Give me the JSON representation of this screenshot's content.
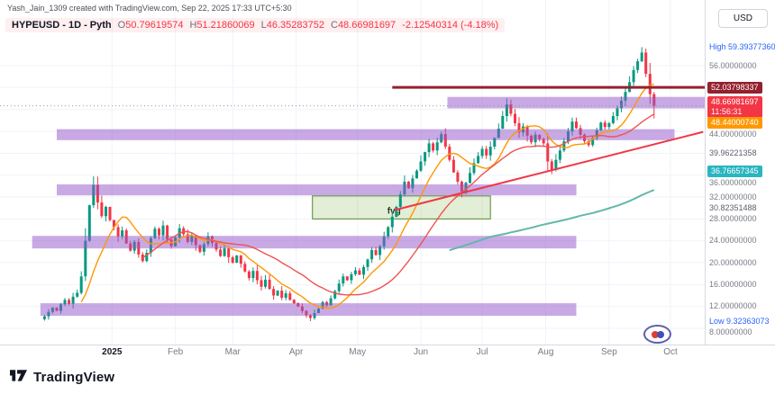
{
  "watermark": "Yash_Jain_1309 created with TradingView.com, Sep 22, 2025 17:33 UTC+5:30",
  "currency_button": "USD",
  "footer": {
    "brand": "TradingView"
  },
  "legend": {
    "title": "HYPEUSD - 1D - Pyth",
    "ohlc": [
      {
        "k": "O",
        "v": "50.79619574"
      },
      {
        "k": "H",
        "v": "51.21860069"
      },
      {
        "k": "L",
        "v": "46.35283752"
      },
      {
        "k": "C",
        "v": "48.66981697"
      }
    ],
    "change": "-2.12540314 (-4.18%)"
  },
  "axis": {
    "items": [
      {
        "type": "hl",
        "label": "High",
        "value": "59.39377360"
      },
      {
        "type": "tick",
        "value": "56.00000000"
      },
      {
        "type": "badge",
        "value": "52.03798337",
        "color": "maroon"
      },
      {
        "type": "badge",
        "value": "48.66981697",
        "color": "red",
        "countdown": "11:56:31"
      },
      {
        "type": "badge",
        "value": "48.44000740",
        "color": "orange"
      },
      {
        "type": "tick",
        "value": "44.00000000"
      },
      {
        "type": "lbl",
        "value": "39.96221358"
      },
      {
        "type": "badge",
        "value": "36.76657345",
        "color": "teal"
      },
      {
        "type": "tick",
        "value": "36.00000000"
      },
      {
        "type": "tick",
        "value": "32.00000000"
      },
      {
        "type": "lbl",
        "value": "30.82351488"
      },
      {
        "type": "tick",
        "value": "28.00000000"
      },
      {
        "type": "tick",
        "value": "24.00000000"
      },
      {
        "type": "tick",
        "value": "20.00000000"
      },
      {
        "type": "tick",
        "value": "16.00000000"
      },
      {
        "type": "tick",
        "value": "12.00000000"
      },
      {
        "type": "hl",
        "label": "Low",
        "value": "9.32363073"
      },
      {
        "type": "tick",
        "value": "8.00000000"
      }
    ]
  },
  "x_axis": [
    {
      "label": "2025",
      "day": 38,
      "major": true
    },
    {
      "label": "Feb",
      "day": 69
    },
    {
      "label": "Mar",
      "day": 97
    },
    {
      "label": "Apr",
      "day": 128
    },
    {
      "label": "May",
      "day": 158
    },
    {
      "label": "Jun",
      "day": 189
    },
    {
      "label": "Jul",
      "day": 219
    },
    {
      "label": "Aug",
      "day": 250
    },
    {
      "label": "Sep",
      "day": 281
    },
    {
      "label": "Oct",
      "day": 311
    }
  ],
  "colors": {
    "up": "#089981",
    "down": "#f23645",
    "maroon": "#93212e",
    "grid": "#f0f3fa",
    "zone": "rgba(145,84,201,0.5)",
    "fvg_fill": "rgba(124,179,66,0.22)",
    "fvg_border": "#568a34",
    "fvg_text": "#233d23"
  },
  "chart_data": {
    "type": "candlestick",
    "title": "HYPEUSD - 1D - Pyth",
    "symbol": "HYPEUSD",
    "timeframe": "1D",
    "high": 59.3937736,
    "low": 9.32363073,
    "ohlc_last": {
      "open": 50.79619574,
      "high": 51.21860069,
      "low": 46.35283752,
      "close": 48.66981697,
      "change": -2.12540314,
      "change_pct": -4.18
    },
    "price_line": 48.66981697,
    "ylim": [
      5.05,
      68.0
    ],
    "start_day": 5,
    "days_per_point": 2,
    "closes": [
      10.2,
      11.0,
      11.8,
      11.2,
      12.4,
      13.2,
      12.5,
      13.8,
      14.5,
      17.5,
      24.0,
      30.5,
      34.2,
      31.0,
      28.5,
      30.2,
      27.8,
      26.5,
      24.8,
      25.9,
      23.5,
      22.2,
      23.8,
      21.5,
      20.3,
      21.8,
      24.5,
      26.2,
      25.0,
      26.8,
      24.2,
      23.0,
      24.6,
      26.3,
      25.2,
      23.8,
      24.9,
      23.2,
      22.0,
      23.4,
      24.8,
      23.6,
      22.4,
      21.2,
      22.6,
      21.0,
      20.0,
      21.3,
      19.8,
      18.4,
      17.2,
      18.5,
      16.8,
      15.6,
      16.9,
      15.2,
      14.0,
      14.9,
      13.6,
      14.4,
      13.2,
      12.6,
      12.0,
      11.2,
      10.4,
      9.9,
      10.8,
      11.6,
      12.8,
      12.2,
      13.5,
      14.8,
      16.2,
      17.5,
      16.8,
      17.9,
      18.6,
      17.8,
      19.2,
      20.6,
      22.3,
      21.4,
      23.0,
      24.8,
      26.5,
      28.4,
      30.2,
      32.5,
      34.8,
      33.6,
      35.4,
      36.8,
      38.5,
      40.2,
      41.8,
      40.5,
      42.0,
      43.5,
      41.2,
      38.8,
      36.5,
      34.8,
      33.0,
      34.6,
      36.4,
      38.2,
      39.5,
      40.8,
      39.6,
      41.2,
      42.8,
      44.5,
      46.8,
      48.9,
      47.2,
      45.5,
      43.8,
      44.9,
      43.2,
      42.0,
      43.4,
      42.6,
      41.8,
      38.5,
      37.0,
      38.8,
      40.5,
      42.2,
      44.0,
      45.8,
      44.6,
      43.4,
      42.2,
      41.5,
      42.8,
      44.2,
      45.6,
      44.8,
      45.5,
      46.8,
      48.2,
      49.6,
      51.2,
      53.0,
      55.2,
      56.8,
      58.4,
      54.5,
      50.8,
      48.67
    ],
    "zones": [
      {
        "name": "resistance-zone-49",
        "p1": 48.2,
        "p2": 50.3,
        "d1": 202,
        "d2": 328
      },
      {
        "name": "resistance-zone-44",
        "p1": 42.4,
        "p2": 44.4,
        "d1": 11,
        "d2": 313
      },
      {
        "name": "zone-33",
        "p1": 32.3,
        "p2": 34.3,
        "d1": 11,
        "d2": 265
      },
      {
        "name": "demand-zone-24",
        "p1": 22.6,
        "p2": 24.9,
        "d1": -1,
        "d2": 265
      },
      {
        "name": "demand-zone-11",
        "p1": 10.3,
        "p2": 12.6,
        "d1": 3,
        "d2": 265
      }
    ],
    "fvg_box": {
      "label": "fvg",
      "p1": 28.0,
      "p2": 32.2,
      "d1": 136,
      "d2": 223
    },
    "hline": {
      "price": 52.03798337,
      "d1": 175,
      "d2": 328
    },
    "trendline": {
      "d1": 176,
      "p1": 29.6,
      "d2": 327,
      "p2": 43.9
    },
    "ma": [
      {
        "name": "ma-20",
        "color": "#ff9800",
        "window": 10,
        "width": 1.4
      },
      {
        "name": "ma-50",
        "color": "#ef5350",
        "window": 25,
        "width": 1.4
      },
      {
        "name": "ma-200",
        "color": "#63b8a8",
        "window": 100,
        "width": 2
      }
    ]
  }
}
